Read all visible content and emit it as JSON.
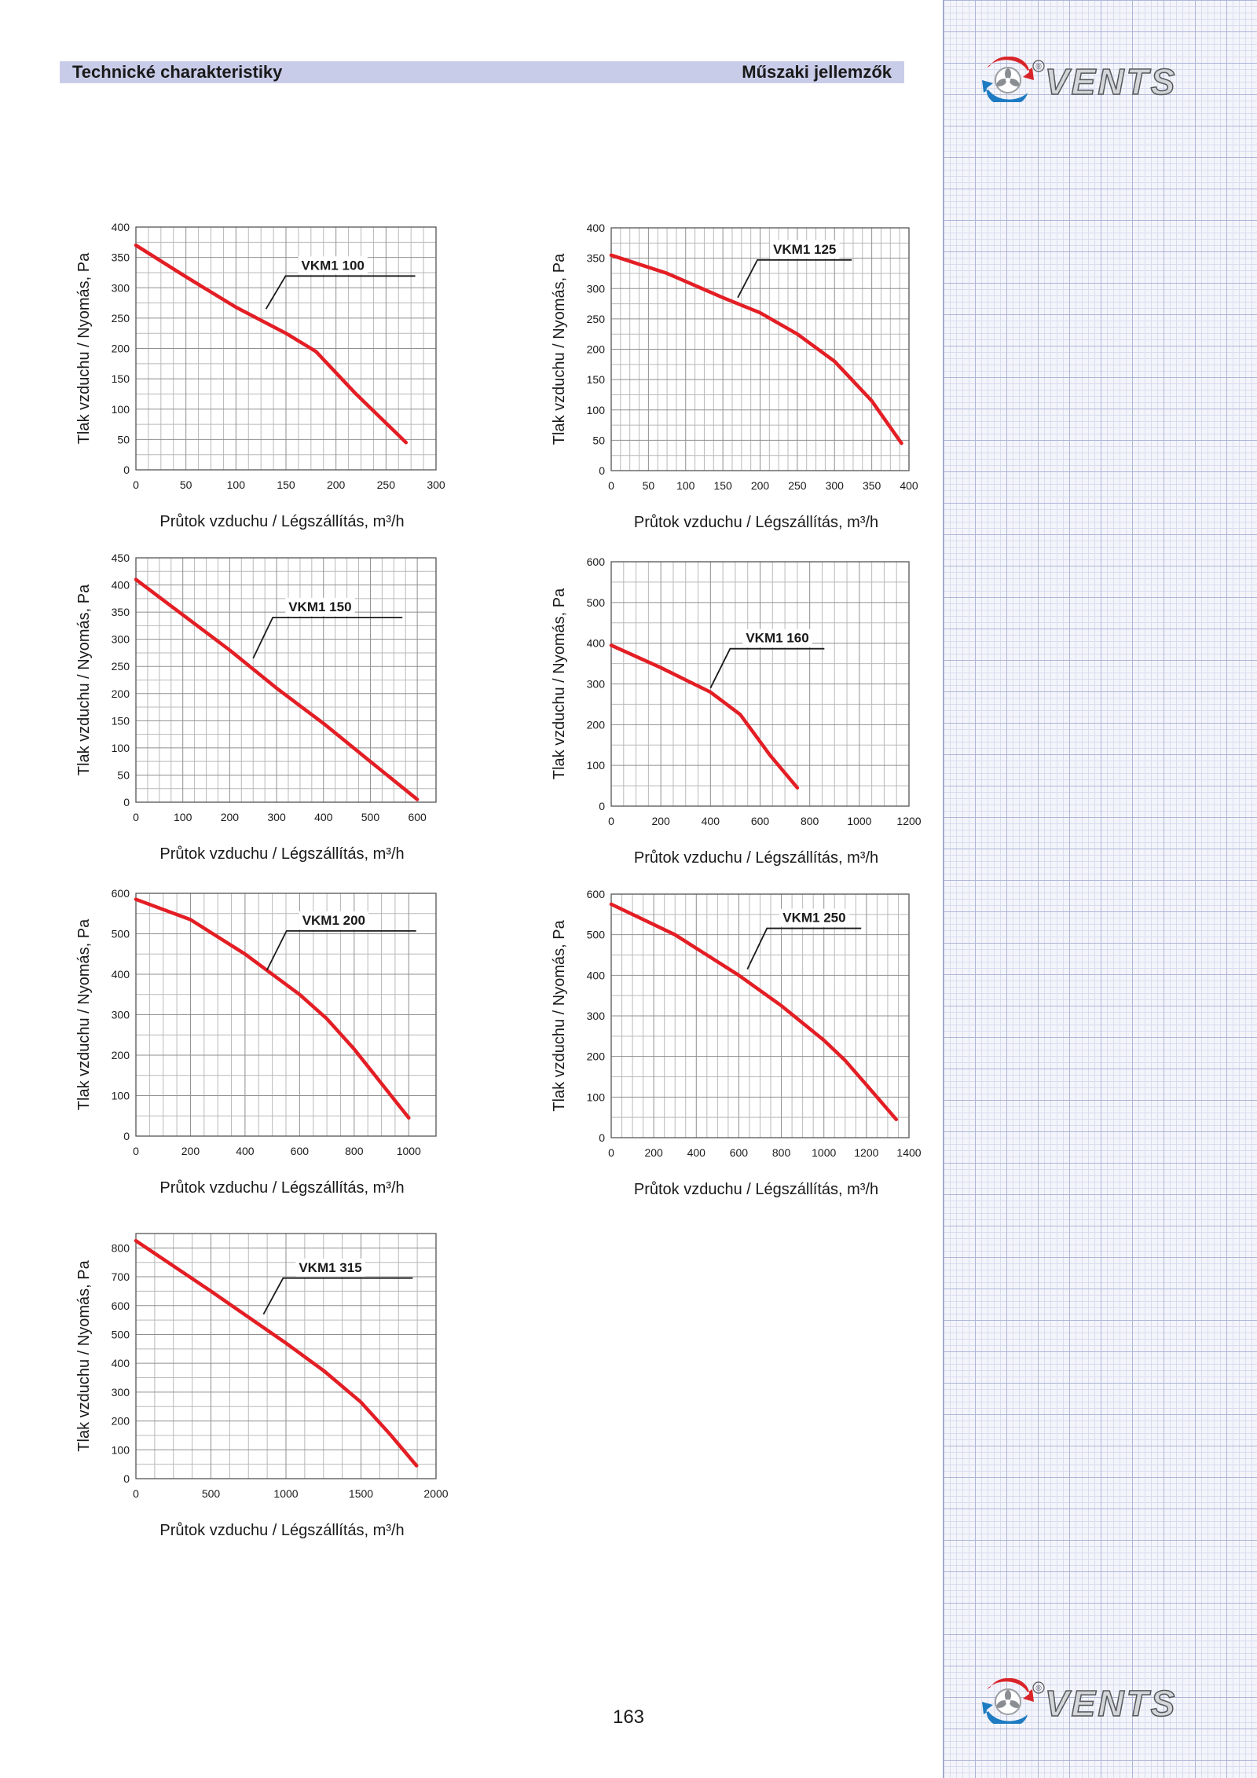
{
  "header": {
    "left_title": "Technické charakteristiky",
    "right_title": "Műszaki jellemzők"
  },
  "logo": {
    "text": "VENTS",
    "registered_mark": "®",
    "colors": {
      "red": "#d9252a",
      "blue": "#1e7bc2",
      "grey": "#8a8d91"
    }
  },
  "page_number": "163",
  "colors": {
    "curve": "#e31e24",
    "grid": "#8f8f8f",
    "header_bar": "#c9cce8"
  },
  "chart_data": [
    {
      "type": "line",
      "series": [
        {
          "name": "VKM1 100",
          "x": [
            0,
            50,
            100,
            150,
            180,
            220,
            270
          ],
          "y": [
            370,
            318,
            268,
            225,
            195,
            125,
            45
          ]
        }
      ],
      "xlabel": "Průtok vzduchu / Légszállítás, m³/h",
      "ylabel": "Tlak vzduchu / Nyomás, Pa",
      "xlim": [
        0,
        300
      ],
      "ylim": [
        0,
        400
      ],
      "xticks": [
        0,
        50,
        100,
        150,
        200,
        250,
        300
      ],
      "yticks": [
        0,
        50,
        100,
        150,
        200,
        250,
        300,
        350,
        400
      ],
      "grid": true,
      "label_pointer_at": [
        130,
        265
      ]
    },
    {
      "type": "line",
      "series": [
        {
          "name": "VKM1 125",
          "x": [
            0,
            75,
            150,
            200,
            250,
            300,
            350,
            390
          ],
          "y": [
            355,
            325,
            285,
            260,
            225,
            180,
            115,
            45
          ]
        }
      ],
      "xlabel": "Průtok vzduchu / Légszállítás, m³/h",
      "ylabel": "Tlak vzduchu / Nyomás, Pa",
      "xlim": [
        0,
        400
      ],
      "ylim": [
        0,
        400
      ],
      "xticks": [
        0,
        50,
        100,
        150,
        200,
        250,
        300,
        350,
        400
      ],
      "yticks": [
        0,
        50,
        100,
        150,
        200,
        250,
        300,
        350,
        400
      ],
      "grid": true,
      "label_pointer_at": [
        170,
        285
      ]
    },
    {
      "type": "line",
      "series": [
        {
          "name": "VKM1 150",
          "x": [
            0,
            100,
            200,
            300,
            400,
            500,
            600
          ],
          "y": [
            410,
            345,
            280,
            210,
            145,
            75,
            5
          ]
        }
      ],
      "xlabel": "Průtok vzduchu / Légszállítás, m³/h",
      "ylabel": "Tlak vzduchu / Nyomás, Pa",
      "xlim": [
        0,
        640
      ],
      "ylim": [
        0,
        450
      ],
      "xticks": [
        0,
        100,
        200,
        300,
        400,
        500,
        600
      ],
      "yticks": [
        0,
        50,
        100,
        150,
        200,
        250,
        300,
        350,
        400,
        450
      ],
      "grid": true,
      "label_pointer_at": [
        250,
        265
      ]
    },
    {
      "type": "line",
      "series": [
        {
          "name": "VKM1 160",
          "x": [
            0,
            200,
            400,
            520,
            640,
            750
          ],
          "y": [
            395,
            340,
            280,
            225,
            125,
            45
          ]
        }
      ],
      "xlabel": "Průtok vzduchu / Légszállítás, m³/h",
      "ylabel": "Tlak vzduchu / Nyomás, Pa",
      "xlim": [
        0,
        1200
      ],
      "ylim": [
        0,
        600
      ],
      "xticks": [
        0,
        200,
        400,
        600,
        800,
        1000,
        1200
      ],
      "yticks": [
        0,
        100,
        200,
        300,
        400,
        500,
        600
      ],
      "grid": true,
      "label_pointer_at": [
        400,
        290
      ]
    },
    {
      "type": "line",
      "series": [
        {
          "name": "VKM1 200",
          "x": [
            0,
            200,
            400,
            600,
            700,
            800,
            1000
          ],
          "y": [
            585,
            535,
            450,
            350,
            290,
            215,
            45
          ]
        }
      ],
      "xlabel": "Průtok vzduchu / Légszállítás, m³/h",
      "ylabel": "Tlak vzduchu / Nyomás, Pa",
      "xlim": [
        0,
        1100
      ],
      "ylim": [
        0,
        600
      ],
      "xticks": [
        0,
        200,
        400,
        600,
        800,
        1000
      ],
      "yticks": [
        0,
        100,
        200,
        300,
        400,
        500,
        600
      ],
      "grid": true,
      "label_pointer_at": [
        480,
        410
      ]
    },
    {
      "type": "line",
      "series": [
        {
          "name": "VKM1 250",
          "x": [
            0,
            300,
            600,
            800,
            1000,
            1100,
            1200,
            1340
          ],
          "y": [
            575,
            500,
            400,
            325,
            240,
            190,
            130,
            45
          ]
        }
      ],
      "xlabel": "Průtok vzduchu / Légszállítás, m³/h",
      "ylabel": "Tlak vzduchu / Nyomás, Pa",
      "xlim": [
        0,
        1400
      ],
      "ylim": [
        0,
        600
      ],
      "xticks": [
        0,
        200,
        400,
        600,
        800,
        1000,
        1200,
        1400
      ],
      "yticks": [
        0,
        100,
        200,
        300,
        400,
        500,
        600
      ],
      "grid": true,
      "label_pointer_at": [
        640,
        415
      ]
    },
    {
      "type": "line",
      "series": [
        {
          "name": "VKM1 315",
          "x": [
            0,
            500,
            1000,
            1250,
            1500,
            1700,
            1870
          ],
          "y": [
            825,
            650,
            470,
            375,
            265,
            150,
            45
          ]
        }
      ],
      "xlabel": "Průtok vzduchu / Légszállítás, m³/h",
      "ylabel": "Tlak vzduchu / Nyomás, Pa",
      "xlim": [
        0,
        2000
      ],
      "ylim": [
        0,
        850
      ],
      "xticks": [
        0,
        500,
        1000,
        1500,
        2000
      ],
      "yticks": [
        0,
        100,
        200,
        300,
        400,
        500,
        600,
        700,
        800
      ],
      "grid": true,
      "label_pointer_at": [
        850,
        570
      ]
    }
  ]
}
